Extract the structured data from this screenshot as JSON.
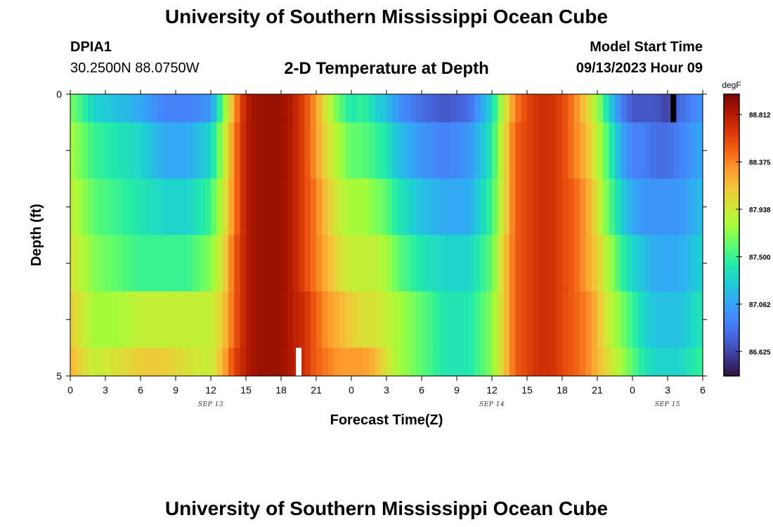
{
  "header": {
    "title": "University of Southern Mississippi Ocean Cube",
    "station_id": "DPIA1",
    "coords": "30.2500N  88.0750W",
    "chart_title": "2-D Temperature at Depth",
    "start_label": "Model Start Time",
    "start_value": "09/13/2023 Hour 09"
  },
  "footer": {
    "title": "University of Southern Mississippi Ocean Cube"
  },
  "chart_data": {
    "type": "heatmap",
    "title": "2-D Temperature at Depth",
    "xlabel": "Forecast Time(Z)",
    "ylabel": "Depth (ft)",
    "colorbar_unit": "degF",
    "colorbar_ticks": [
      "88.812",
      "88.375",
      "87.938",
      "87.500",
      "87.062",
      "86.625"
    ],
    "colorbar_range": [
      86.4,
      89.0
    ],
    "x_tick_labels": [
      "0",
      "3",
      "6",
      "9",
      "12",
      "15",
      "18",
      "21",
      "0",
      "3",
      "6",
      "9",
      "12",
      "15",
      "18",
      "21",
      "0",
      "3",
      "6"
    ],
    "date_labels": [
      {
        "label": "SEP 13",
        "at_hour": 12
      },
      {
        "label": "SEP 14",
        "at_hour": 36
      },
      {
        "label": "SEP 15",
        "at_hour": 51
      }
    ],
    "x_range_hours": [
      0,
      54
    ],
    "y_tick_labels": [
      "0",
      "5"
    ],
    "y_range_ft": [
      0,
      5
    ],
    "depth_layers_ft": [
      0.25,
      1.0,
      2.0,
      3.0,
      4.0,
      4.75
    ],
    "knots_hours": [
      0,
      2,
      4,
      6,
      8,
      10,
      12,
      13,
      14,
      15,
      16,
      17,
      18,
      19,
      20,
      21,
      22,
      23,
      24,
      25,
      26,
      27,
      28,
      30,
      32,
      34,
      36,
      37,
      38,
      39,
      40,
      41,
      42,
      43,
      44,
      45,
      46,
      47,
      48,
      49,
      50,
      51,
      52,
      53,
      54
    ],
    "temperature_degF": [
      [
        87.7,
        87.3,
        87.2,
        87.1,
        86.9,
        86.9,
        87.0,
        87.6,
        88.3,
        88.8,
        88.9,
        88.9,
        88.9,
        88.8,
        88.6,
        88.3,
        87.9,
        87.6,
        87.4,
        87.5,
        87.3,
        87.2,
        87.0,
        86.8,
        86.7,
        86.8,
        87.3,
        87.9,
        88.4,
        88.6,
        88.7,
        88.7,
        88.6,
        88.4,
        88.1,
        87.8,
        87.3,
        86.9,
        86.7,
        86.7,
        86.7,
        86.6,
        86.8,
        86.9,
        87.0
      ],
      [
        87.8,
        87.5,
        87.4,
        87.3,
        87.1,
        87.1,
        87.3,
        87.8,
        88.4,
        88.8,
        88.9,
        88.9,
        88.9,
        88.8,
        88.6,
        88.3,
        88.0,
        87.8,
        87.6,
        87.6,
        87.5,
        87.4,
        87.2,
        87.0,
        86.9,
        87.0,
        87.4,
        88.0,
        88.5,
        88.6,
        88.7,
        88.7,
        88.6,
        88.4,
        88.2,
        87.9,
        87.5,
        87.1,
        86.9,
        86.9,
        86.8,
        86.8,
        86.9,
        87.0,
        87.1
      ],
      [
        87.9,
        87.6,
        87.5,
        87.4,
        87.3,
        87.3,
        87.5,
        87.9,
        88.4,
        88.8,
        88.9,
        88.9,
        88.9,
        88.8,
        88.6,
        88.4,
        88.1,
        87.9,
        87.8,
        87.8,
        87.7,
        87.6,
        87.4,
        87.2,
        87.1,
        87.1,
        87.5,
        88.0,
        88.5,
        88.6,
        88.7,
        88.7,
        88.6,
        88.5,
        88.3,
        88.0,
        87.6,
        87.3,
        87.1,
        87.0,
        87.0,
        87.0,
        87.0,
        87.1,
        87.2
      ],
      [
        88.0,
        87.7,
        87.6,
        87.5,
        87.5,
        87.5,
        87.7,
        88.0,
        88.5,
        88.8,
        88.9,
        88.9,
        88.9,
        88.8,
        88.6,
        88.4,
        88.2,
        88.0,
        87.9,
        87.9,
        87.9,
        87.8,
        87.6,
        87.4,
        87.3,
        87.3,
        87.6,
        88.1,
        88.5,
        88.6,
        88.7,
        88.7,
        88.6,
        88.5,
        88.3,
        88.1,
        87.8,
        87.5,
        87.3,
        87.2,
        87.1,
        87.1,
        87.1,
        87.2,
        87.3
      ],
      [
        88.1,
        87.8,
        87.8,
        87.9,
        87.9,
        87.9,
        87.9,
        88.1,
        88.5,
        88.8,
        88.9,
        88.9,
        88.9,
        88.8,
        88.7,
        88.5,
        88.3,
        88.2,
        88.1,
        88.0,
        88.0,
        87.9,
        87.8,
        87.6,
        87.4,
        87.4,
        87.7,
        88.1,
        88.5,
        88.6,
        88.7,
        88.7,
        88.6,
        88.5,
        88.4,
        88.2,
        87.9,
        87.7,
        87.5,
        87.3,
        87.2,
        87.2,
        87.2,
        87.3,
        87.4
      ],
      [
        88.2,
        87.9,
        88.0,
        88.1,
        88.1,
        88.0,
        87.9,
        88.2,
        88.6,
        88.8,
        88.9,
        88.9,
        88.9,
        88.8,
        88.7,
        88.5,
        88.4,
        88.3,
        88.3,
        88.3,
        88.2,
        88.0,
        87.8,
        87.6,
        87.4,
        87.4,
        87.7,
        88.1,
        88.5,
        88.6,
        88.7,
        88.7,
        88.6,
        88.5,
        88.4,
        88.2,
        88.0,
        87.8,
        87.6,
        87.4,
        87.3,
        87.3,
        87.3,
        87.4,
        87.5
      ]
    ],
    "colormap": [
      "#30123b",
      "#3e3994",
      "#4662d8",
      "#4585fb",
      "#32a9f4",
      "#1ecfd4",
      "#24eca6",
      "#61fc6c",
      "#a4fc3b",
      "#d1e834",
      "#f3c63a",
      "#fe9b2d",
      "#f36315",
      "#d93806",
      "#b11901",
      "#7a0402"
    ],
    "missing_markers": [
      {
        "at_hour": 19.5,
        "depth_ft": [
          4.5,
          5.0
        ],
        "color": "#ffffff"
      },
      {
        "at_hour": 51.5,
        "depth_ft": [
          0,
          0.5
        ],
        "color": "#000000"
      }
    ],
    "grid": false
  }
}
